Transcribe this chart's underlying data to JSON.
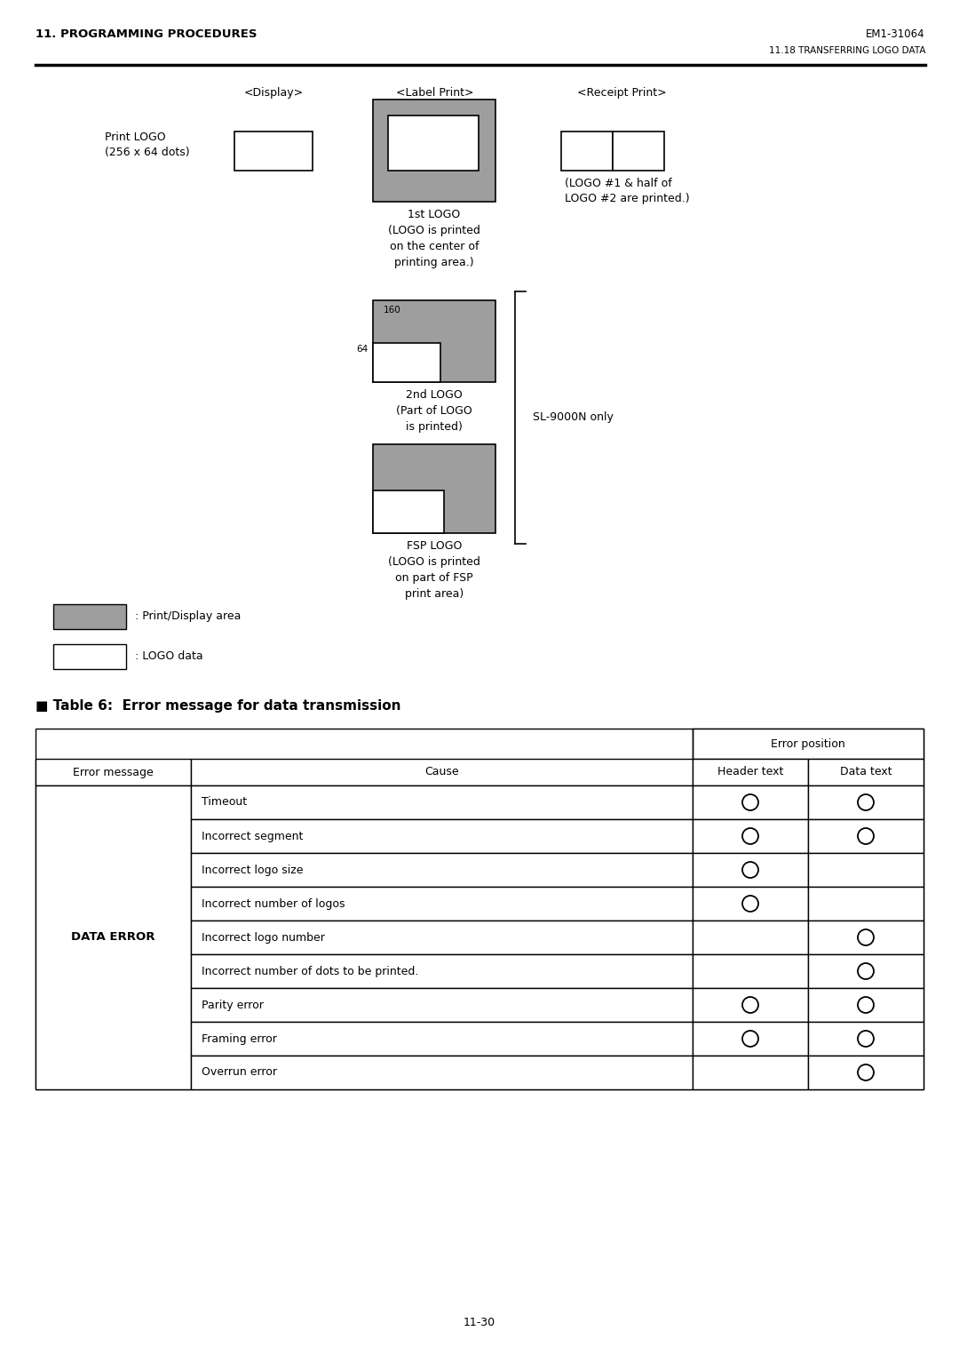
{
  "page_header_left": "11. PROGRAMMING PROCEDURES",
  "page_header_right": "EM1-31064",
  "page_subheader": "11.18 TRANSFERRING LOGO DATA",
  "col_display_label": "<Display>",
  "col_label_label": "<Label Print>",
  "col_receipt_label": "<Receipt Print>",
  "print_logo_label": "Print LOGO\n(256 x 64 dots)",
  "logo1_caption": "1st LOGO\n(LOGO is printed\non the center of\nprinting area.)",
  "logo2_caption": "2nd LOGO\n(Part of LOGO\nis printed)",
  "fsp_caption": "FSP LOGO\n(LOGO is printed\non part of FSP\nprint area)",
  "receipt_caption": "(LOGO #1 & half of\nLOGO #2 are printed.)",
  "sl9000n_label": "SL-9000N only",
  "dim_160": "160",
  "dim_64": "64",
  "legend_gray": ": Print/Display area",
  "legend_white": ": LOGO data",
  "table_title": "■ Table 6:  Error message for data transmission",
  "col1_header": "Error message",
  "col2_header": "Cause",
  "col3_header": "Error position",
  "col3a_header": "Header text",
  "col3b_header": "Data text",
  "error_message": "DATA ERROR",
  "causes": [
    "Timeout",
    "Incorrect segment",
    "Incorrect logo size",
    "Incorrect number of logos",
    "Incorrect logo number",
    "Incorrect number of dots to be printed.",
    "Parity error",
    "Framing error",
    "Overrun error"
  ],
  "header_circles": [
    true,
    true,
    true,
    true,
    false,
    false,
    true,
    true,
    false
  ],
  "data_circles": [
    true,
    true,
    false,
    false,
    true,
    true,
    true,
    true,
    true
  ],
  "gray_color": "#9E9E9E",
  "white_color": "#FFFFFF",
  "border_color": "#000000",
  "page_number": "11-30",
  "bg_color": "#FFFFFF"
}
